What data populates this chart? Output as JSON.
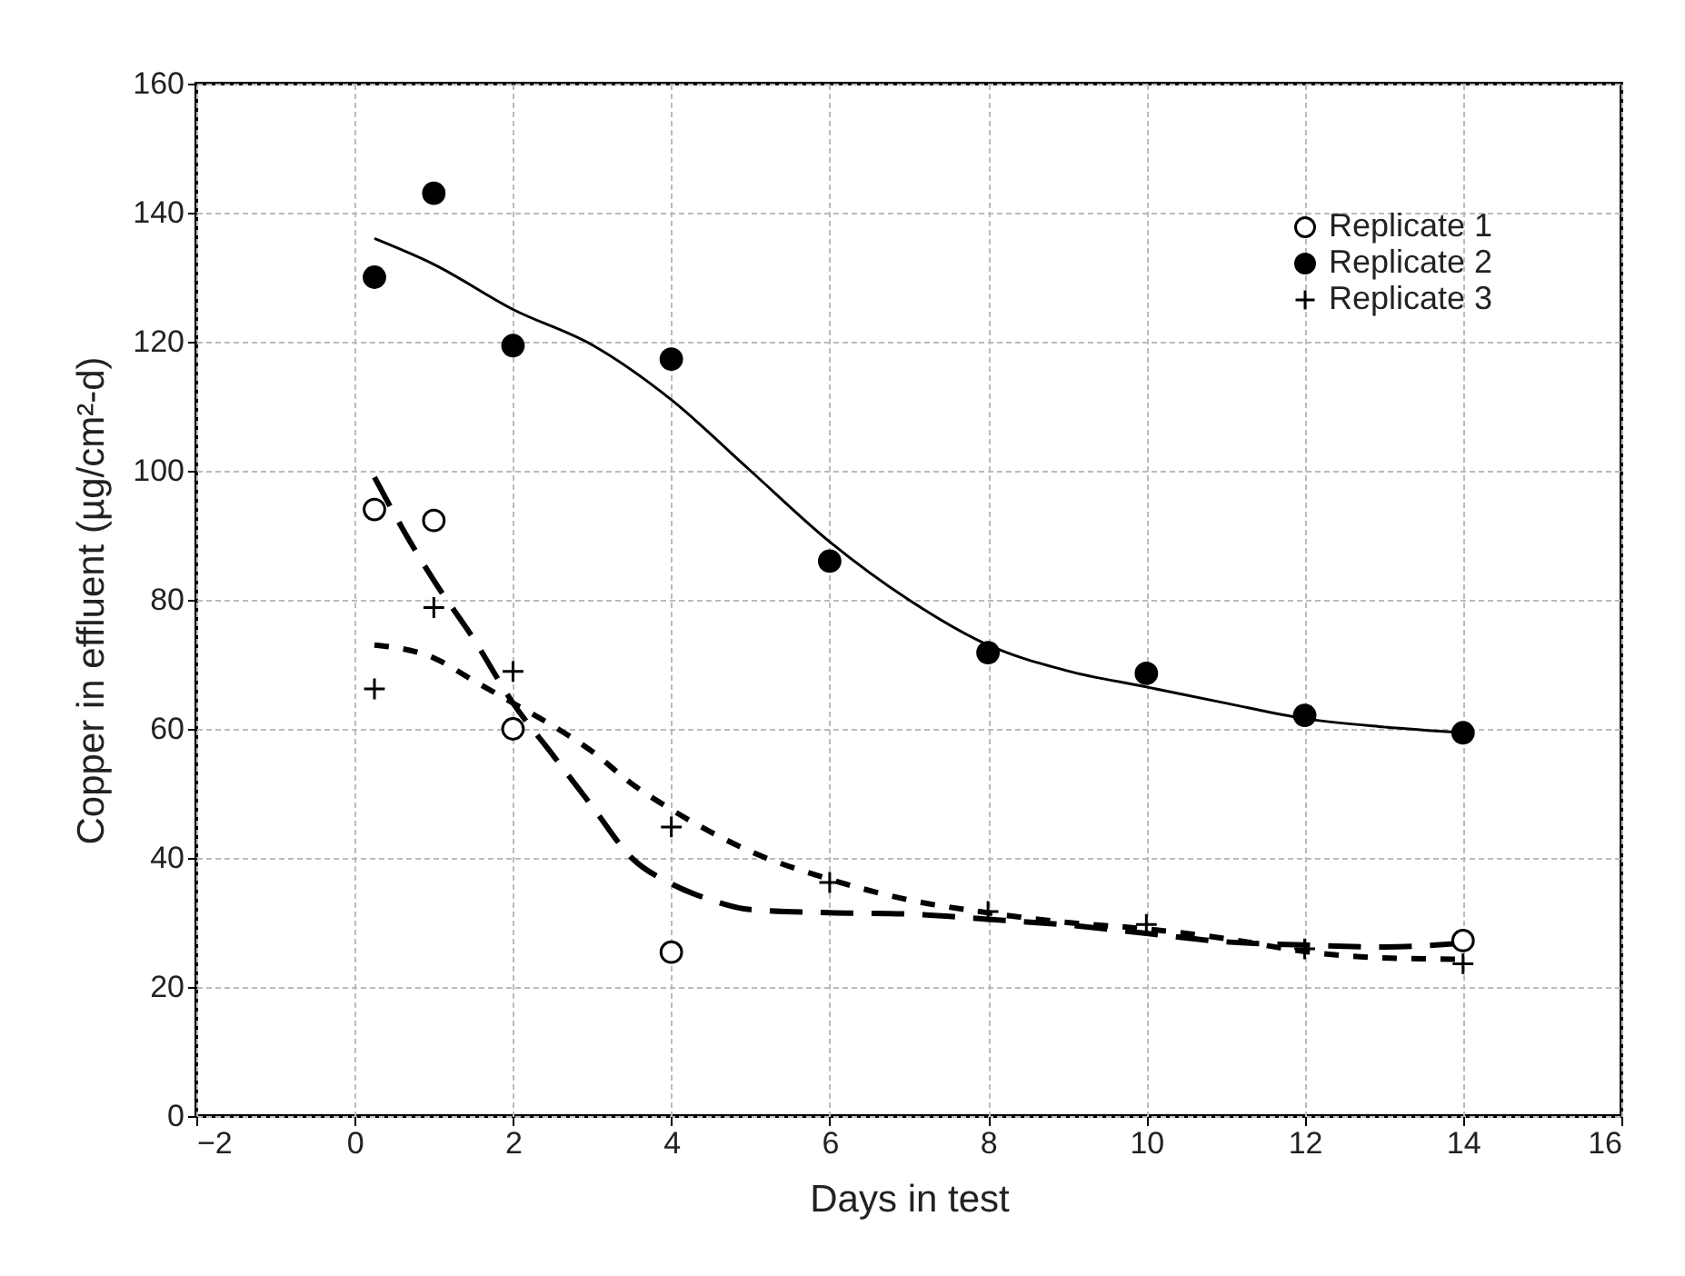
{
  "chart_data": {
    "type": "scatter",
    "xlabel": "Days in test",
    "ylabel": "Copper in effluent (µg/cm²-d)",
    "xlim": [
      -2,
      16
    ],
    "xticks": [
      -2,
      0,
      2,
      4,
      6,
      8,
      10,
      12,
      14,
      16
    ],
    "ylim": [
      0,
      160
    ],
    "yticks": [
      0,
      20,
      40,
      60,
      80,
      100,
      120,
      140,
      160
    ],
    "grid": true,
    "legend": "top right",
    "series": [
      {
        "name": "Replicate 1",
        "type": "scatter",
        "marker": "circle",
        "color": "#ffffff",
        "x": [
          0.25,
          1,
          2,
          4,
          14
        ],
        "values": [
          94,
          92.3,
          60,
          25.4,
          27.2
        ]
      },
      {
        "name": "Replicate 2",
        "type": "scatter",
        "marker": "circle",
        "color": "#000000",
        "x": [
          0.25,
          1,
          2,
          4,
          6,
          8,
          10,
          12,
          14
        ],
        "values": [
          130,
          143,
          119.4,
          117.3,
          86,
          71.8,
          68.6,
          62.1,
          59.4
        ]
      },
      {
        "name": "Replicate 3",
        "type": "scatter",
        "marker": "cross",
        "color": "#000000",
        "x": [
          0.25,
          1,
          2,
          4,
          6,
          8,
          10,
          12,
          14
        ],
        "values": [
          66.2,
          78.8,
          68.9,
          44.8,
          36.2,
          31.7,
          29.7,
          25.9,
          23.6
        ]
      },
      {
        "type": "line",
        "marker": "none",
        "line_style": "dashed",
        "color": "#000000",
        "x": [
          0.25,
          0.7,
          1,
          1.5,
          2,
          2.5,
          3,
          3.5,
          4,
          4.5,
          5,
          6,
          7,
          8,
          9,
          10,
          11,
          12,
          13,
          14
        ],
        "values": [
          99,
          89,
          83,
          74,
          64,
          56,
          48,
          40,
          36,
          33.5,
          32,
          31.5,
          31.3,
          30.5,
          29.6,
          28.3,
          27,
          26.5,
          26.2,
          26.8
        ]
      },
      {
        "type": "line",
        "marker": "none",
        "line_style": "solid",
        "color": "#000000",
        "x": [
          0.25,
          1,
          2,
          3,
          4,
          5,
          6,
          7,
          8,
          9,
          10,
          11,
          12,
          13,
          14
        ],
        "values": [
          136,
          132,
          125,
          119.5,
          111,
          100,
          89,
          80,
          73,
          69,
          66.5,
          64,
          61.6,
          60.3,
          59.4
        ]
      },
      {
        "type": "line",
        "marker": "none",
        "line_style": "dotted",
        "color": "#000000",
        "x": [
          0.25,
          1,
          1.5,
          2,
          2.5,
          3,
          3.5,
          4,
          4.5,
          5,
          6,
          7,
          8,
          9,
          10,
          11,
          12,
          13,
          14
        ],
        "values": [
          73,
          71,
          67.5,
          64,
          60.5,
          56.5,
          51.5,
          47.5,
          44,
          41,
          36.7,
          33.5,
          31.5,
          30,
          29,
          27.5,
          25.5,
          24.5,
          24.3
        ]
      }
    ]
  }
}
